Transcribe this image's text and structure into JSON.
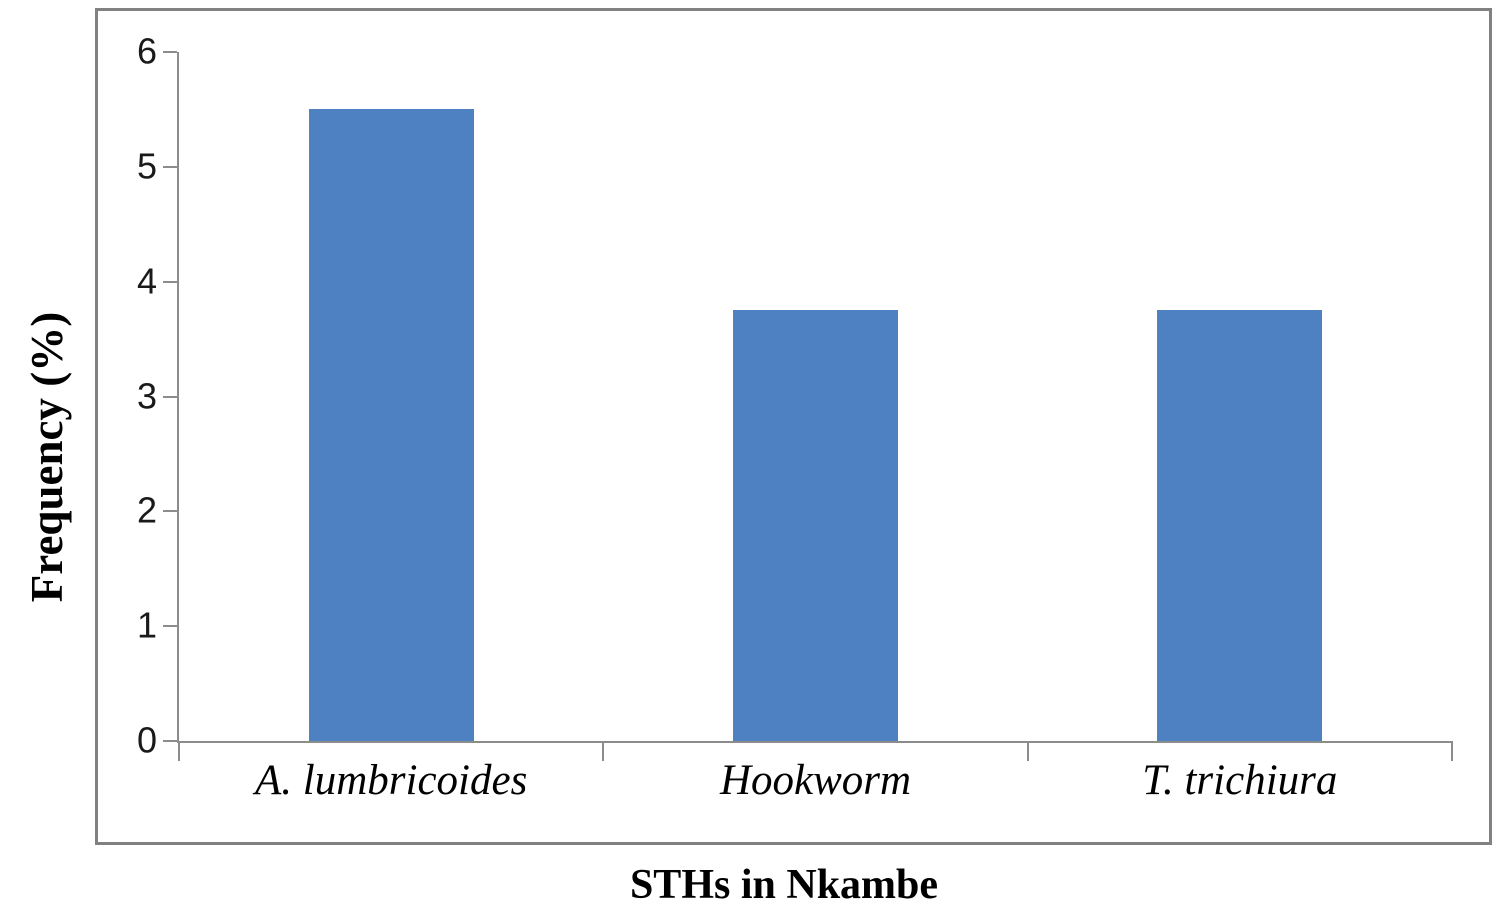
{
  "chart_data": {
    "type": "bar",
    "categories": [
      "A. lumbricoides",
      "Hookworm",
      "T. trichiura"
    ],
    "values": [
      5.5,
      3.75,
      3.75
    ],
    "title": "",
    "xlabel": "STHs in Nkambe",
    "ylabel": "Frequency (%)",
    "ylim": [
      0,
      6
    ],
    "yticks": [
      0,
      1,
      2,
      3,
      4,
      5,
      6
    ],
    "grid": false,
    "legend": "none",
    "bar_color": "#4d81c1",
    "axis_color": "#8c8c8c",
    "frame_color": "#818181",
    "text_color": "#000000"
  }
}
